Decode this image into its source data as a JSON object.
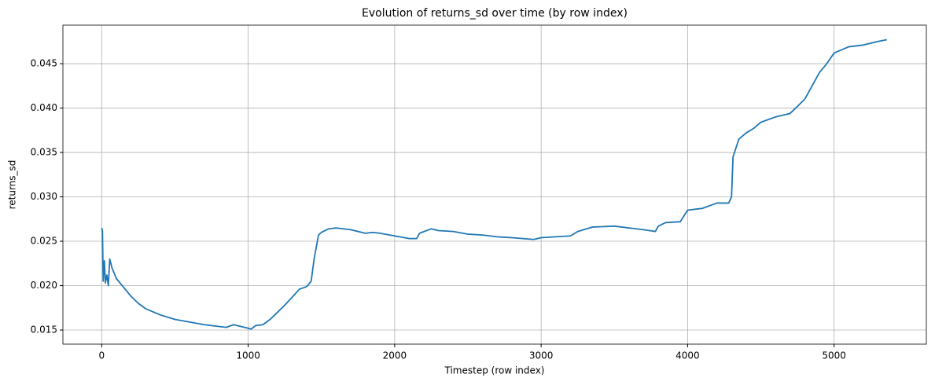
{
  "chart_data": {
    "type": "line",
    "title": "Evolution of returns_sd over time (by row index)",
    "x_label": "Timestep (row index)",
    "y_label": "returns_sd",
    "grid": true,
    "xlim": [
      -265,
      5630
    ],
    "ylim": [
      0.01341,
      0.04934
    ],
    "xticks": [
      0,
      1000,
      2000,
      3000,
      4000,
      5000
    ],
    "yticks": [
      0.015,
      {
        "value": 0.02,
        "label": "0.020"
      },
      0.025,
      {
        "value": 0.03,
        "label": "0.030"
      },
      0.035,
      {
        "value": 0.04,
        "label": "0.040"
      },
      0.045
    ],
    "x": [
      0,
      5,
      10,
      18,
      25,
      35,
      45,
      55,
      70,
      100,
      150,
      200,
      250,
      300,
      400,
      500,
      600,
      700,
      800,
      850,
      900,
      1000,
      1020,
      1050,
      1100,
      1150,
      1200,
      1250,
      1300,
      1350,
      1400,
      1430,
      1450,
      1480,
      1500,
      1550,
      1600,
      1700,
      1800,
      1850,
      1900,
      2000,
      2100,
      2150,
      2170,
      2250,
      2300,
      2400,
      2500,
      2600,
      2700,
      2800,
      2950,
      3000,
      3100,
      3200,
      3250,
      3350,
      3500,
      3600,
      3700,
      3780,
      3800,
      3850,
      3950,
      4000,
      4100,
      4200,
      4280,
      4300,
      4310,
      4350,
      4400,
      4450,
      4500,
      4600,
      4700,
      4800,
      4850,
      4900,
      4950,
      5000,
      5100,
      5200,
      5300,
      5360
    ],
    "series": [
      {
        "name": "returns_sd",
        "color": "#1f77b4",
        "values": [
          0.0265,
          0.0262,
          0.0205,
          0.0228,
          0.0203,
          0.0212,
          0.02,
          0.023,
          0.022,
          0.0208,
          0.0198,
          0.0188,
          0.018,
          0.0174,
          0.0167,
          0.0162,
          0.0159,
          0.0156,
          0.0154,
          0.0153,
          0.0156,
          0.0152,
          0.0151,
          0.0155,
          0.0156,
          0.0162,
          0.017,
          0.0178,
          0.0187,
          0.0196,
          0.0199,
          0.0205,
          0.023,
          0.0257,
          0.026,
          0.0264,
          0.0265,
          0.0263,
          0.0259,
          0.026,
          0.0259,
          0.0256,
          0.0253,
          0.0253,
          0.0259,
          0.0264,
          0.0262,
          0.0261,
          0.0258,
          0.0257,
          0.0255,
          0.0254,
          0.0252,
          0.0254,
          0.0255,
          0.0256,
          0.0261,
          0.0266,
          0.0267,
          0.0265,
          0.0263,
          0.0261,
          0.0267,
          0.0271,
          0.0272,
          0.0285,
          0.0287,
          0.0293,
          0.0293,
          0.03,
          0.0345,
          0.0365,
          0.0372,
          0.0377,
          0.0384,
          0.039,
          0.0394,
          0.041,
          0.0425,
          0.044,
          0.045,
          0.0462,
          0.0469,
          0.0471,
          0.0475,
          0.0477
        ]
      }
    ]
  }
}
